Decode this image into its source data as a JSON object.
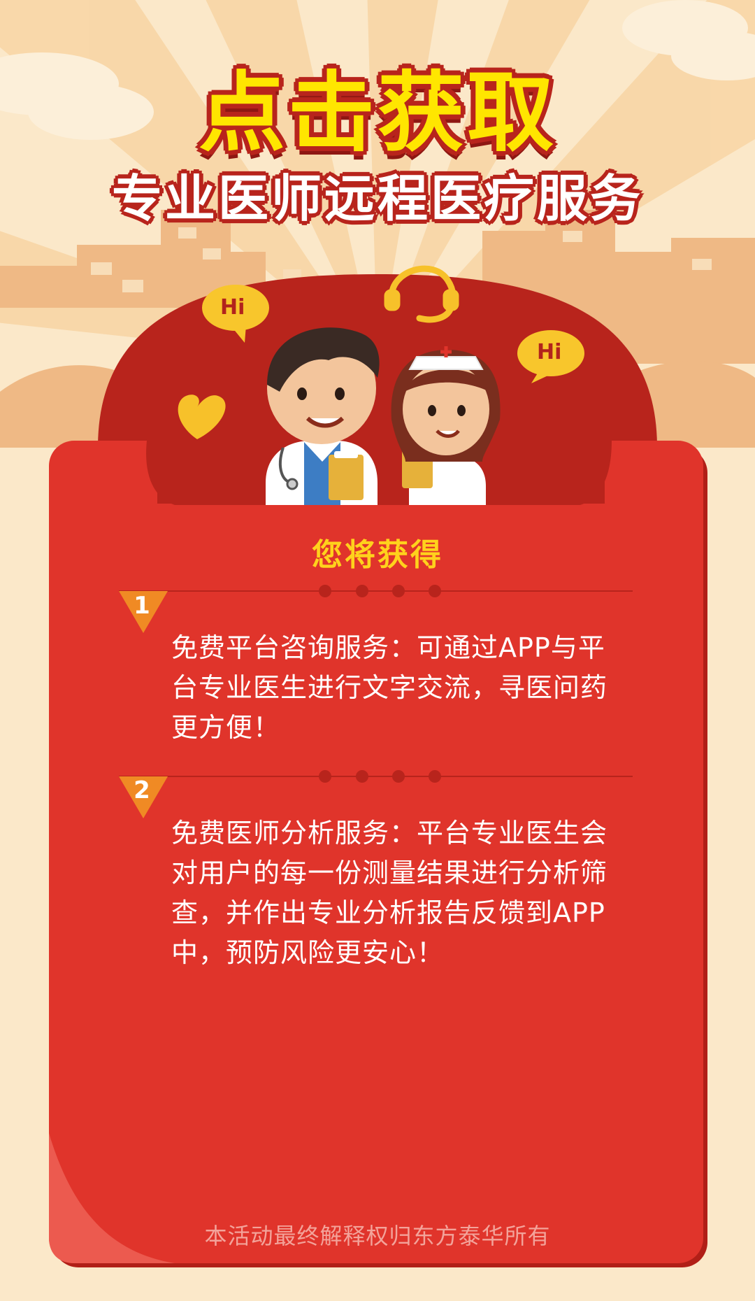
{
  "header": {
    "title": "点击获取",
    "subtitle": "专业医师远程医疗服务"
  },
  "bubbles": {
    "left": "Hi",
    "right": "Hi"
  },
  "card": {
    "heading": "您将获得",
    "items": [
      {
        "number": "1",
        "text": "免费平台咨询服务：可通过APP与平台专业医生进行文字交流，寻医问药更方便！"
      },
      {
        "number": "2",
        "text": "免费医师分析服务：平台专业医生会对用户的每一份测量结果进行分析筛查，并作出专业分析报告反馈到APP中，预防风险更安心！"
      }
    ]
  },
  "footer": {
    "note": "本活动最终解释权归东方泰华所有"
  },
  "icons": [
    "headset-icon",
    "heart-icon",
    "doctor-illustration",
    "nurse-illustration",
    "speech-bubble-icon"
  ],
  "colors": {
    "card_red": "#e0342b",
    "dome_red": "#b8241c",
    "title_yellow": "#ffe600",
    "heading_yellow": "#ffd21c",
    "badge_orange": "#f08a24",
    "background_cream": "#fbe8c9"
  }
}
